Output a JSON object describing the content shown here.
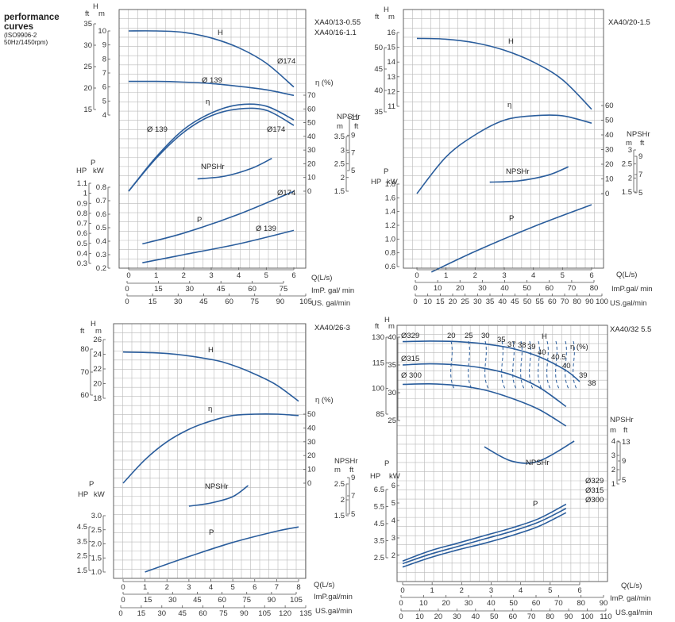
{
  "title": {
    "line1": "performance",
    "line2": "curves",
    "line3": "(ISO9906-2",
    "line4": "50Hz/1450rpm)"
  },
  "colors": {
    "curve": "#2a5d9c",
    "grid": "#b9b9b9",
    "frame": "#555555"
  },
  "chart_data": [
    {
      "type": "line",
      "models": [
        "XA40/13-0.55",
        "XA40/16-1.1"
      ],
      "x_axes": {
        "q": {
          "label": "Q(L/s)",
          "ticks": [
            "0",
            "1",
            "2",
            "3",
            "4",
            "5",
            "6"
          ]
        },
        "imp": {
          "label": "ImP. gal/ min",
          "ticks": [
            "0",
            "15",
            "30",
            "45",
            "60",
            "75"
          ]
        },
        "us": {
          "label": "US. gal/min",
          "ticks": [
            "0",
            "15",
            "30",
            "45",
            "60",
            "75",
            "90",
            "105"
          ]
        }
      },
      "head": {
        "m_ticks": [
          "4",
          "5",
          "6",
          "7",
          "8",
          "9",
          "10"
        ],
        "ft_ticks": [
          "15",
          "20",
          "25",
          "30",
          "35"
        ],
        "series": [
          {
            "name": "Ø174",
            "x": [
              0,
              1,
              2,
              3,
              4,
              5,
              6
            ],
            "y": [
              10.0,
              10.0,
              9.9,
              9.5,
              8.8,
              7.7,
              6.0
            ]
          },
          {
            "name": "Ø139",
            "x": [
              0,
              1,
              2,
              3,
              4,
              5,
              6
            ],
            "y": [
              6.4,
              6.4,
              6.35,
              6.25,
              6.05,
              5.8,
              5.4
            ]
          }
        ]
      },
      "eff": {
        "ticks": [
          "0",
          "10",
          "20",
          "30",
          "40",
          "50",
          "60",
          "70"
        ],
        "series": [
          {
            "name": "Ø139",
            "x": [
              0,
              1,
              2,
              3,
              4,
              5,
              6
            ],
            "y": [
              0,
              25,
              45,
              57,
              63,
              62,
              52
            ]
          },
          {
            "name": "Ø174",
            "x": [
              0,
              1,
              2,
              3,
              4,
              5,
              6
            ],
            "y": [
              0,
              24,
              43,
              55,
              60,
              59,
              48
            ]
          }
        ]
      },
      "npsh": {
        "m_ticks": [
          "1.5",
          "2",
          "2.5",
          "3",
          "3.5"
        ],
        "ft_ticks": [
          "5",
          "7",
          "9",
          "11"
        ],
        "series": [
          {
            "name": "NPSHr",
            "x": [
              2.5,
              3.5,
              4.5,
              5.2
            ],
            "y": [
              1.95,
              2.05,
              2.35,
              2.7
            ]
          }
        ]
      },
      "power": {
        "kw_ticks": [
          "0.2",
          "0.3",
          "0.4",
          "0.5",
          "0.6",
          "0.7",
          "0.8"
        ],
        "hp_ticks": [
          "0.3",
          "0.4",
          "0.5",
          "0.6",
          "0.7",
          "0.8",
          "0.9",
          "1",
          "1.1"
        ],
        "series": [
          {
            "name": "Ø174",
            "x": [
              0.5,
              2,
              4,
              6
            ],
            "y": [
              0.38,
              0.46,
              0.6,
              0.77
            ]
          },
          {
            "name": "Ø139",
            "x": [
              0.5,
              2,
              4,
              6
            ],
            "y": [
              0.24,
              0.3,
              0.38,
              0.48
            ]
          }
        ]
      },
      "labels": {
        "h": "H",
        "eta": "η",
        "p": "P",
        "npshr": "NPSHr",
        "d174": "Ø174",
        "d139": "Ø 139",
        "d139b": "Ø 139",
        "d174b": "Ø174",
        "d174c": "Ø174",
        "d139c": "Ø 139"
      }
    },
    {
      "type": "line",
      "models": [
        "XA40/20-1.5"
      ],
      "x_axes": {
        "q": {
          "label": "Q(L/s)",
          "ticks": [
            "0",
            "1",
            "2",
            "3",
            "4",
            "5",
            "6"
          ]
        },
        "imp": {
          "label": "ImP.gal/ min",
          "ticks": [
            "0",
            "10",
            "20",
            "30",
            "40",
            "50",
            "60",
            "70",
            "80"
          ]
        },
        "us": {
          "label": "US.gal/min",
          "ticks": [
            "0",
            "10",
            "15",
            "20",
            "25",
            "30",
            "35",
            "40",
            "45",
            "50",
            "55",
            "60",
            "70",
            "80",
            "90",
            "100"
          ]
        }
      },
      "head": {
        "m_ticks": [
          "11",
          "12",
          "13",
          "14",
          "15",
          "16"
        ],
        "ft_ticks": [
          "35",
          "40",
          "45",
          "50"
        ],
        "series": [
          {
            "name": "H",
            "x": [
              0,
              1,
              2,
              3,
              4,
              5,
              6
            ],
            "y": [
              15.6,
              15.55,
              15.3,
              14.8,
              14.0,
              12.8,
              10.8
            ]
          }
        ]
      },
      "eff": {
        "ticks": [
          "0",
          "10",
          "20",
          "30",
          "40",
          "50",
          "60"
        ],
        "series": [
          {
            "name": "η",
            "x": [
              0,
              1,
              2,
              3,
              4,
              5,
              6
            ],
            "y": [
              0,
              25,
              40,
              50,
              53,
              53,
              48
            ]
          }
        ]
      },
      "npsh": {
        "m_ticks": [
          "1.5",
          "2",
          "2.5",
          "3"
        ],
        "ft_ticks": [
          "5",
          "7",
          "9"
        ],
        "series": [
          {
            "name": "NPSHr",
            "x": [
              2.5,
              3.5,
              4.5,
              5.2
            ],
            "y": [
              1.85,
              1.9,
              2.1,
              2.4
            ]
          }
        ]
      },
      "power": {
        "kw_ticks": [
          "0.6",
          "0.8",
          "1.0",
          "1.2",
          "1.4",
          "1.6",
          "1.8"
        ],
        "series": [
          {
            "name": "P",
            "x": [
              0.5,
              2,
              4,
              6
            ],
            "y": [
              0.52,
              0.82,
              1.18,
              1.5
            ]
          }
        ]
      },
      "labels": {
        "h": "H",
        "eta": "η",
        "p": "P",
        "npshr": "NPSHr"
      }
    },
    {
      "type": "line",
      "models": [
        "XA40/26-3"
      ],
      "x_axes": {
        "q": {
          "label": "Q(L/s)",
          "ticks": [
            "0",
            "1",
            "2",
            "3",
            "4",
            "5",
            "6",
            "7",
            "8"
          ]
        },
        "imp": {
          "label": "ImP.gal/min",
          "ticks": [
            "0",
            "15",
            "30",
            "45",
            "60",
            "75",
            "90",
            "105"
          ]
        },
        "us": {
          "label": "US.gal/min",
          "ticks": [
            "0",
            "15",
            "30",
            "45",
            "60",
            "75",
            "90",
            "105",
            "120",
            "135"
          ]
        }
      },
      "head": {
        "m_ticks": [
          "18",
          "20",
          "22",
          "24",
          "26"
        ],
        "ft_ticks": [
          "60",
          "70",
          "80"
        ],
        "series": [
          {
            "name": "H",
            "x": [
              0,
              2,
              4,
              5,
              6,
              7,
              8
            ],
            "y": [
              24.3,
              24.1,
              23.3,
              22.5,
              21.3,
              19.8,
              17.6
            ]
          }
        ]
      },
      "eff": {
        "ticks": [
          "0",
          "10",
          "20",
          "30",
          "40",
          "50"
        ],
        "series": [
          {
            "name": "η",
            "x": [
              0,
              1,
              2,
              3,
              4,
              5,
              6,
              7,
              8
            ],
            "y": [
              0,
              17,
              30,
              39,
              45,
              49,
              50,
              50,
              49
            ]
          }
        ]
      },
      "npsh": {
        "m_ticks": [
          "1.5",
          "2",
          "2.5"
        ],
        "ft_ticks": [
          "5",
          "7",
          "9"
        ],
        "series": [
          {
            "name": "NPSHr",
            "x": [
              3,
              4,
              5,
              5.7
            ],
            "y": [
              1.8,
              1.9,
              2.1,
              2.45
            ]
          }
        ]
      },
      "power": {
        "kw_ticks": [
          "1.0",
          "1.5",
          "2.0",
          "2.5",
          "3.0"
        ],
        "hp_ticks": [
          "1.5",
          "2.5",
          "3.5",
          "4.5"
        ],
        "series": [
          {
            "name": "P",
            "x": [
              1,
              3,
              5,
              7,
              8
            ],
            "y": [
              1.0,
              1.55,
              2.05,
              2.45,
              2.6
            ]
          }
        ]
      },
      "labels": {
        "h": "H",
        "eta": "η",
        "p": "P",
        "npshr": "NPSHr"
      }
    },
    {
      "type": "line",
      "models": [
        "XA40/32 5.5"
      ],
      "x_axes": {
        "q": {
          "label": "Q(L/s)",
          "ticks": [
            "0",
            "1",
            "2",
            "3",
            "4",
            "5",
            "6"
          ]
        },
        "imp": {
          "label": "ImP. gal/min",
          "ticks": [
            "0",
            "10",
            "20",
            "30",
            "40",
            "50",
            "60",
            "70",
            "80",
            "90"
          ]
        },
        "us": {
          "label": "US.gal/min",
          "ticks": [
            "0",
            "10",
            "20",
            "30",
            "40",
            "50",
            "60",
            "70",
            "80",
            "90",
            "100",
            "110"
          ]
        }
      },
      "head": {
        "m_ticks": [
          "25",
          "30",
          "35",
          "40"
        ],
        "ft_ticks": [
          "85",
          "100",
          "115",
          "130"
        ],
        "series": [
          {
            "name": "Ø329",
            "x": [
              0,
              1,
              2,
              3,
              4,
              5,
              6,
              6.5
            ],
            "y": [
              39.2,
              39.3,
              39.2,
              38.8,
              38,
              36.5,
              34,
              32
            ]
          },
          {
            "name": "Ø315",
            "x": [
              0,
              1,
              2,
              3,
              4,
              5,
              6
            ],
            "y": [
              35,
              35.2,
              35,
              34.4,
              33.2,
              31,
              27.5
            ]
          },
          {
            "name": "Ø 300",
            "x": [
              0,
              1,
              2,
              3,
              4,
              5,
              6
            ],
            "y": [
              31.5,
              31.6,
              31.3,
              30.5,
              29,
              27,
              24
            ]
          }
        ]
      },
      "eff_labels": [
        "20",
        "25",
        "30",
        "35",
        "37",
        "38",
        "39",
        "40",
        "40.5",
        "40",
        "39",
        "38"
      ],
      "eff_unit": "η (%)",
      "npsh": {
        "m_ticks": [
          "1",
          "2",
          "3",
          "4"
        ],
        "ft_ticks": [
          "5",
          "9",
          "13"
        ],
        "series": [
          {
            "name": "NPSHr",
            "x": [
              3,
              4,
              5,
              6.3
            ],
            "y": [
              3.6,
              2.6,
              2.6,
              4.0
            ]
          }
        ]
      },
      "power": {
        "kw_ticks": [
          "2",
          "3",
          "4",
          "5",
          "6"
        ],
        "hp_ticks": [
          "2.5",
          "3.5",
          "4.5",
          "5.5",
          "6.5"
        ],
        "series": [
          {
            "name": "Ø329",
            "x": [
              0,
              1,
              2,
              3,
              4,
              5,
              6
            ],
            "y": [
              1.55,
              2.15,
              2.6,
              3.05,
              3.5,
              4.05,
              4.9
            ]
          },
          {
            "name": "Ø315",
            "x": [
              0,
              1,
              2,
              3,
              4,
              5,
              6
            ],
            "y": [
              1.4,
              1.95,
              2.4,
              2.85,
              3.3,
              3.85,
              4.65
            ]
          },
          {
            "name": "Ø300",
            "x": [
              0,
              1,
              2,
              3,
              4,
              5,
              6
            ],
            "y": [
              1.2,
              1.75,
              2.2,
              2.6,
              3.05,
              3.6,
              4.4
            ]
          }
        ]
      },
      "labels": {
        "h": "H",
        "p": "P",
        "npshr": "NPSHr"
      }
    }
  ]
}
